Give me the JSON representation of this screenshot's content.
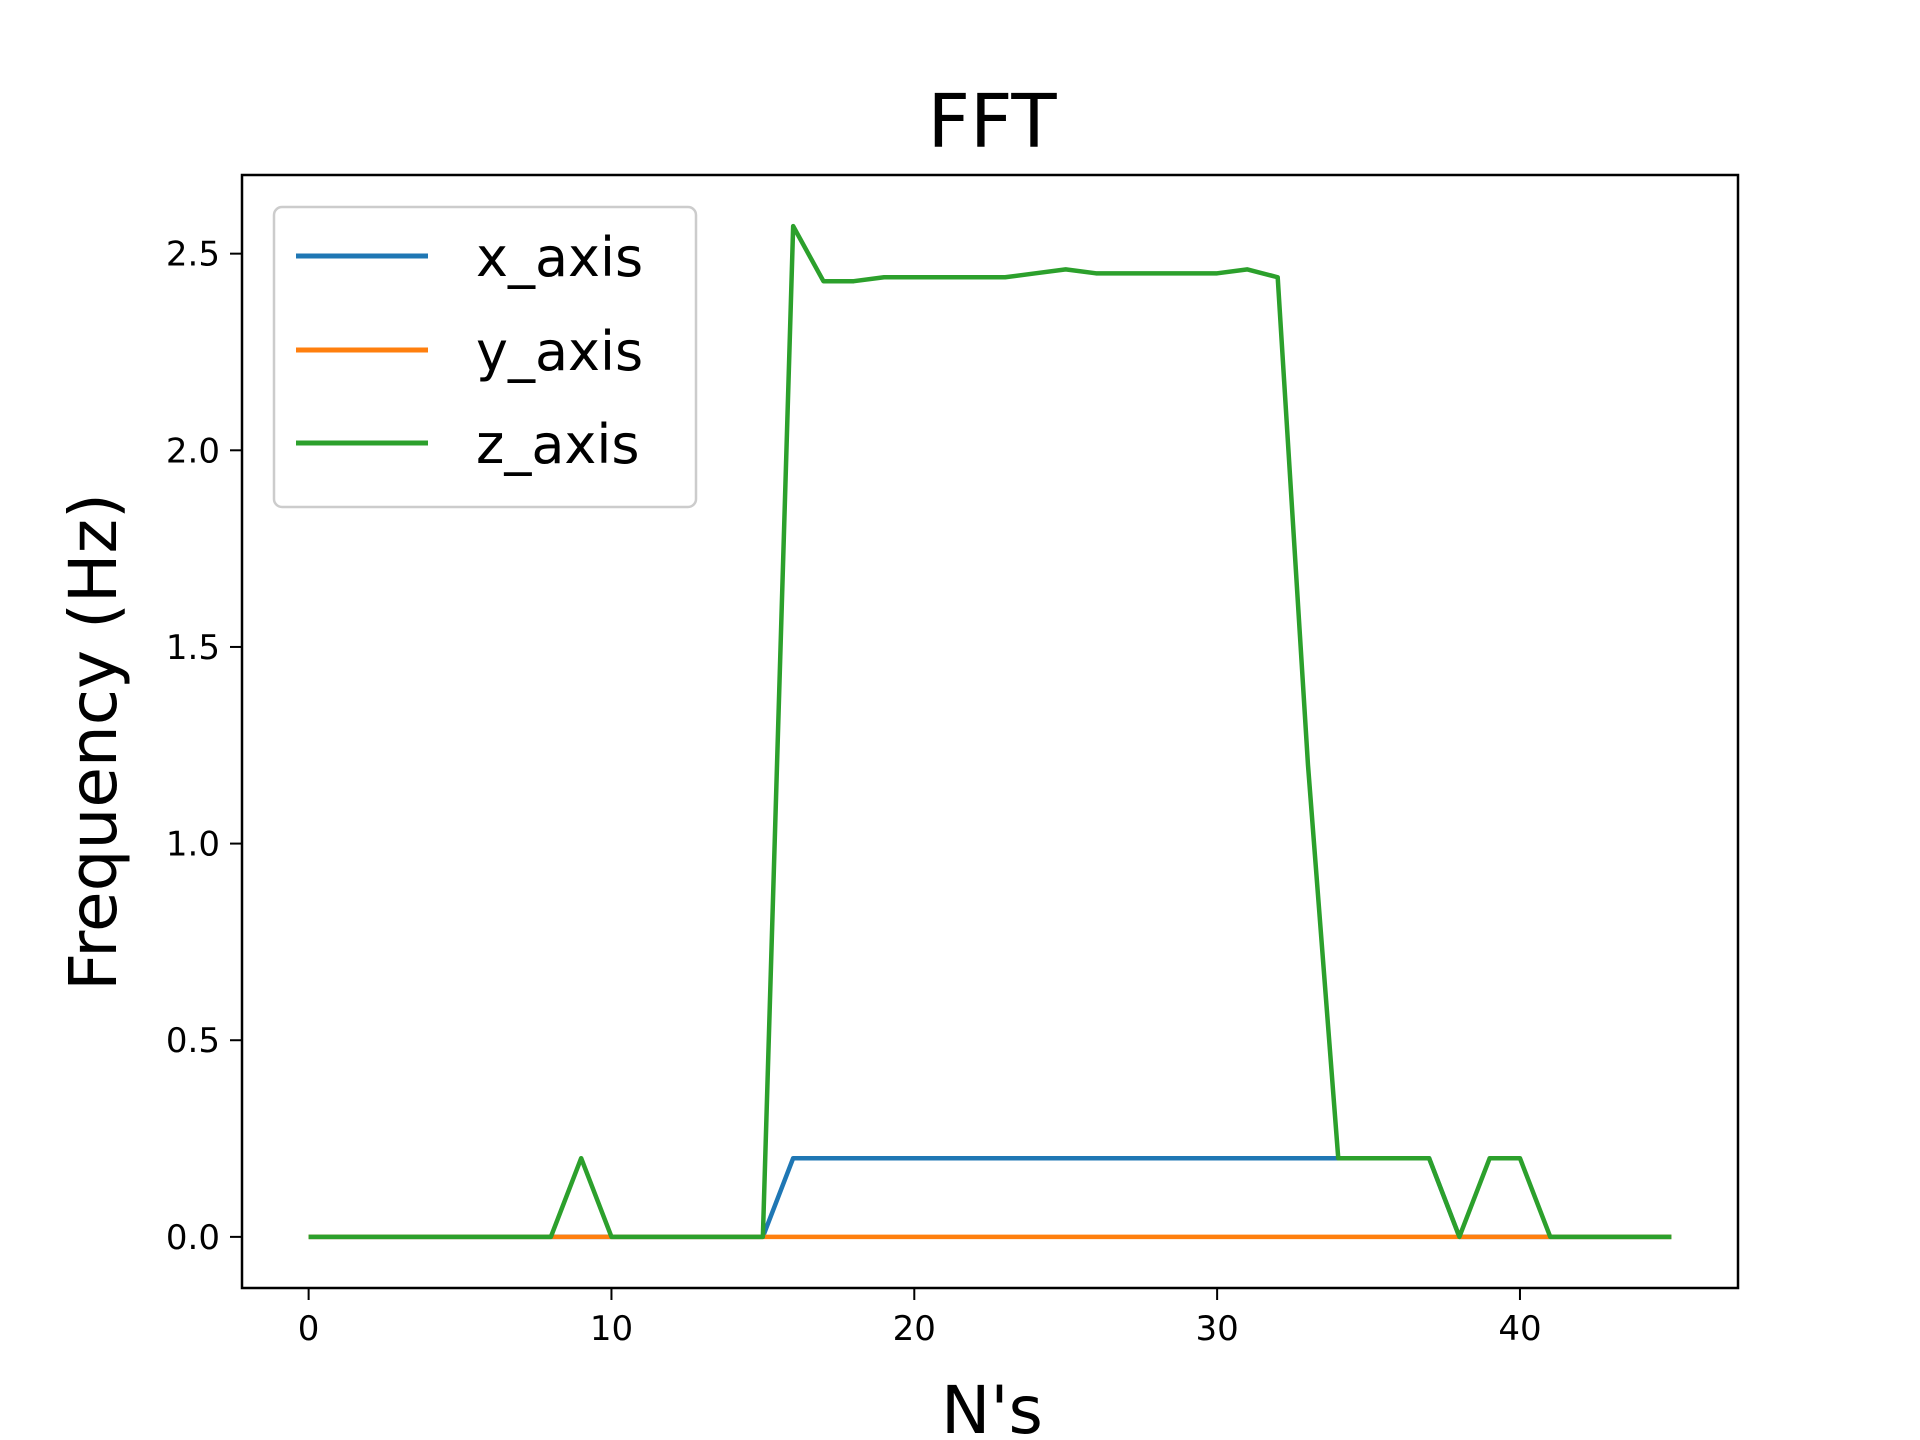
{
  "chart_data": {
    "type": "line",
    "title": "FFT",
    "xlabel": "N's",
    "ylabel": "Frequency (Hz)",
    "xlim": [
      -2.2,
      47.2
    ],
    "ylim": [
      -0.13,
      2.7
    ],
    "xticks": [
      0,
      10,
      20,
      30,
      40
    ],
    "yticks": [
      0.0,
      0.5,
      1.0,
      1.5,
      2.0,
      2.5
    ],
    "xtick_labels": [
      "0",
      "10",
      "20",
      "30",
      "40"
    ],
    "ytick_labels": [
      "0.0",
      "0.5",
      "1.0",
      "1.5",
      "2.0",
      "2.5"
    ],
    "grid": false,
    "legend_position": "top-left",
    "x": [
      0,
      1,
      2,
      3,
      4,
      5,
      6,
      7,
      8,
      9,
      10,
      11,
      12,
      13,
      14,
      15,
      16,
      17,
      18,
      19,
      20,
      21,
      22,
      23,
      24,
      25,
      26,
      27,
      28,
      29,
      30,
      31,
      32,
      33,
      34,
      35,
      36,
      37,
      38,
      39,
      40,
      41,
      42,
      43,
      44,
      45
    ],
    "series": [
      {
        "name": "x_axis",
        "color": "#1f77b4",
        "values": [
          0,
          0,
          0,
          0,
          0,
          0,
          0,
          0,
          0,
          0,
          0,
          0,
          0,
          0,
          0,
          0,
          0.2,
          0.2,
          0.2,
          0.2,
          0.2,
          0.2,
          0.2,
          0.2,
          0.2,
          0.2,
          0.2,
          0.2,
          0.2,
          0.2,
          0.2,
          0.2,
          0.2,
          0.2,
          0.2,
          0.2,
          0.2,
          0.2,
          0,
          0,
          0,
          0,
          0,
          0,
          0,
          0
        ]
      },
      {
        "name": "y_axis",
        "color": "#ff7f0e",
        "values": [
          0,
          0,
          0,
          0,
          0,
          0,
          0,
          0,
          0,
          0,
          0,
          0,
          0,
          0,
          0,
          0,
          0,
          0,
          0,
          0,
          0,
          0,
          0,
          0,
          0,
          0,
          0,
          0,
          0,
          0,
          0,
          0,
          0,
          0,
          0,
          0,
          0,
          0,
          0,
          0,
          0,
          0,
          0,
          0,
          0,
          0
        ]
      },
      {
        "name": "z_axis",
        "color": "#2ca02c",
        "values": [
          0,
          0,
          0,
          0,
          0,
          0,
          0,
          0,
          0,
          0.2,
          0,
          0,
          0,
          0,
          0,
          0,
          2.57,
          2.43,
          2.43,
          2.44,
          2.44,
          2.44,
          2.44,
          2.44,
          2.45,
          2.46,
          2.45,
          2.45,
          2.45,
          2.45,
          2.45,
          2.46,
          2.44,
          1.2,
          0.2,
          0.2,
          0.2,
          0.2,
          0,
          0.2,
          0.2,
          0,
          0,
          0,
          0,
          0
        ]
      }
    ]
  }
}
